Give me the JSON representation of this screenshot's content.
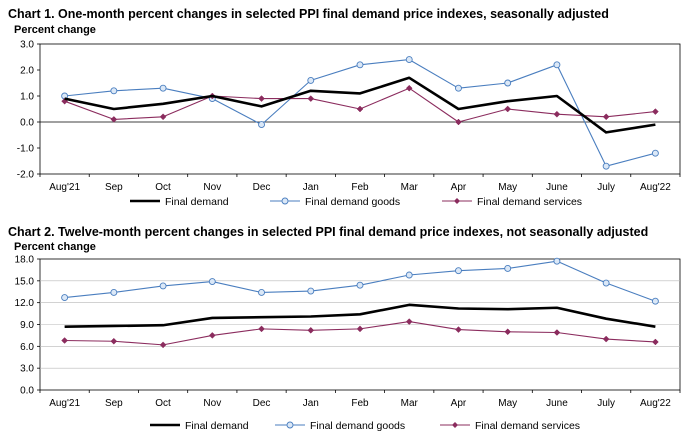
{
  "chart_data": [
    {
      "type": "line",
      "title": "Chart 1. One-month percent changes in selected PPI final demand price indexes, seasonally adjusted",
      "ylabel": "Percent change",
      "xlabel": "",
      "categories": [
        "Aug'21",
        "Sep",
        "Oct",
        "Nov",
        "Dec",
        "Jan",
        "Feb",
        "Mar",
        "Apr",
        "May",
        "June",
        "July",
        "Aug'22"
      ],
      "ylim": [
        -2.0,
        3.0
      ],
      "yticks": [
        3.0,
        2.0,
        1.0,
        0.0,
        -1.0,
        -2.0
      ],
      "ytick_labels": [
        "3.0",
        "2.0",
        "1.0",
        "0.0",
        "-1.0",
        "-2.0"
      ],
      "grid": false,
      "legend_position": "bottom",
      "series": [
        {
          "name": "Final demand",
          "color": "#000000",
          "marker": "none",
          "values": [
            0.9,
            0.5,
            0.7,
            1.0,
            0.6,
            1.2,
            1.1,
            1.7,
            0.5,
            0.8,
            1.0,
            -0.4,
            -0.1
          ]
        },
        {
          "name": "Final demand goods",
          "color": "#4a7ebf",
          "marker": "circle",
          "values": [
            1.0,
            1.2,
            1.3,
            0.9,
            -0.1,
            1.6,
            2.2,
            2.4,
            1.3,
            1.5,
            2.2,
            -1.7,
            -1.2
          ]
        },
        {
          "name": "Final demand services",
          "color": "#8b2c5e",
          "marker": "diamond",
          "values": [
            0.8,
            0.1,
            0.2,
            1.0,
            0.9,
            0.9,
            0.5,
            1.3,
            0.0,
            0.5,
            0.3,
            0.2,
            0.4
          ]
        }
      ]
    },
    {
      "type": "line",
      "title": "Chart 2. Twelve-month percent changes in selected PPI final demand price indexes, not seasonally adjusted",
      "ylabel": "Percent change",
      "xlabel": "",
      "categories": [
        "Aug'21",
        "Sep",
        "Oct",
        "Nov",
        "Dec",
        "Jan",
        "Feb",
        "Mar",
        "Apr",
        "May",
        "June",
        "July",
        "Aug'22"
      ],
      "ylim": [
        0.0,
        18.0
      ],
      "yticks": [
        18.0,
        15.0,
        12.0,
        9.0,
        6.0,
        3.0,
        0.0
      ],
      "ytick_labels": [
        "18.0",
        "15.0",
        "12.0",
        "9.0",
        "6.0",
        "3.0",
        "0.0"
      ],
      "grid": true,
      "legend_position": "bottom",
      "series": [
        {
          "name": "Final demand",
          "color": "#000000",
          "marker": "none",
          "values": [
            8.7,
            8.8,
            8.9,
            9.9,
            10.0,
            10.1,
            10.4,
            11.7,
            11.2,
            11.1,
            11.3,
            9.8,
            8.7
          ]
        },
        {
          "name": "Final demand goods",
          "color": "#4a7ebf",
          "marker": "circle",
          "values": [
            12.7,
            13.4,
            14.3,
            14.9,
            13.4,
            13.6,
            14.4,
            15.8,
            16.4,
            16.7,
            17.7,
            14.7,
            12.2
          ]
        },
        {
          "name": "Final demand services",
          "color": "#8b2c5e",
          "marker": "diamond",
          "values": [
            6.8,
            6.7,
            6.2,
            7.5,
            8.4,
            8.2,
            8.4,
            9.4,
            8.3,
            8.0,
            7.9,
            7.0,
            6.6
          ]
        }
      ]
    }
  ]
}
